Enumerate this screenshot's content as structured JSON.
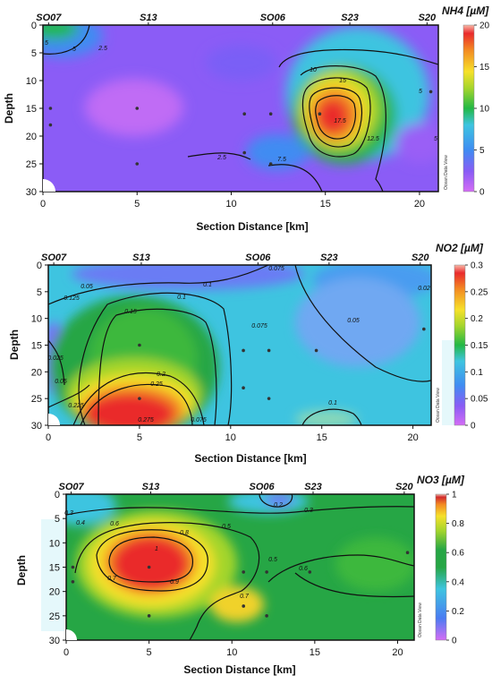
{
  "chart_data": [
    {
      "type": "heatmap",
      "title": "NH4 [µM]",
      "xlabel": "Section Distance [km]",
      "ylabel": "Depth",
      "xlim": [
        0,
        21
      ],
      "ylim": [
        30,
        0
      ],
      "x_ticks": [
        "0",
        "5",
        "10",
        "15",
        "20"
      ],
      "y_ticks": [
        "0",
        "5",
        "10",
        "15",
        "20",
        "25",
        "30"
      ],
      "stations": [
        {
          "name": "SO07",
          "x": 0.3
        },
        {
          "name": "S13",
          "x": 5.6
        },
        {
          "name": "SO06",
          "x": 12.2
        },
        {
          "name": "S23",
          "x": 16.3
        },
        {
          "name": "S20",
          "x": 20.4
        }
      ],
      "colorbar": {
        "min": 0,
        "max": 20,
        "ticks": [
          "0",
          "5",
          "10",
          "15",
          "20"
        ]
      },
      "contour_labels": [
        "5",
        "5",
        "2.5",
        "10",
        "15",
        "17.5",
        "12.5",
        "5",
        "2.5",
        "7.5",
        "5"
      ],
      "samples": [
        {
          "x": 0.4,
          "y": 15
        },
        {
          "x": 0.4,
          "y": 18
        },
        {
          "x": 5.0,
          "y": 15
        },
        {
          "x": 5.0,
          "y": 25
        },
        {
          "x": 10.7,
          "y": 16
        },
        {
          "x": 10.7,
          "y": 23
        },
        {
          "x": 12.1,
          "y": 16
        },
        {
          "x": 12.1,
          "y": 25
        },
        {
          "x": 14.7,
          "y": 16
        },
        {
          "x": 20.6,
          "y": 12
        }
      ],
      "watermark": "Ocean Data View"
    },
    {
      "type": "heatmap",
      "title": "NO2 [µM]",
      "xlabel": "Section Distance [km]",
      "ylabel": "Depth",
      "xlim": [
        0,
        21
      ],
      "ylim": [
        30,
        0
      ],
      "x_ticks": [
        "0",
        "5",
        "10",
        "15",
        "20"
      ],
      "y_ticks": [
        "0",
        "5",
        "10",
        "15",
        "20",
        "25",
        "30"
      ],
      "stations": [
        {
          "name": "SO07",
          "x": 0.3
        },
        {
          "name": "S13",
          "x": 5.1
        },
        {
          "name": "SO06",
          "x": 11.5
        },
        {
          "name": "S23",
          "x": 15.4
        },
        {
          "name": "S20",
          "x": 20.4
        }
      ],
      "colorbar": {
        "min": 0,
        "max": 0.3,
        "ticks": [
          "0",
          "0.05",
          "0.1",
          "0.15",
          "0.2",
          "0.25",
          "0.3"
        ]
      },
      "contour_labels": [
        "0.05",
        "0.1",
        "0.1",
        "0.125",
        "0.15",
        "0.2",
        "0.25",
        "0.225",
        "0.275",
        "0.075",
        "0.075",
        "0.05",
        "0.025",
        "0.05",
        "0.1",
        "0.02",
        "0.075"
      ],
      "samples": [
        {
          "x": 5.0,
          "y": 15
        },
        {
          "x": 5.0,
          "y": 25
        },
        {
          "x": 10.7,
          "y": 16
        },
        {
          "x": 10.7,
          "y": 23
        },
        {
          "x": 12.1,
          "y": 16
        },
        {
          "x": 12.1,
          "y": 25
        },
        {
          "x": 14.7,
          "y": 16
        },
        {
          "x": 20.6,
          "y": 12
        }
      ],
      "watermark": "Ocean Data View"
    },
    {
      "type": "heatmap",
      "title": "NO3 [µM]",
      "xlabel": "Section Distance [km]",
      "ylabel": "Depth",
      "xlim": [
        0,
        21
      ],
      "ylim": [
        30,
        0
      ],
      "x_ticks": [
        "0",
        "5",
        "10",
        "15",
        "20"
      ],
      "y_ticks": [
        "0",
        "5",
        "10",
        "15",
        "20",
        "25",
        "30"
      ],
      "stations": [
        {
          "name": "SO07",
          "x": 0.3
        },
        {
          "name": "S13",
          "x": 5.1
        },
        {
          "name": "SO06",
          "x": 11.8
        },
        {
          "name": "S23",
          "x": 14.9
        },
        {
          "name": "S20",
          "x": 20.4
        }
      ],
      "colorbar": {
        "min": 0,
        "max": 1,
        "ticks": [
          "0",
          "0.2",
          "0.4",
          "0.6",
          "0.8",
          "1"
        ]
      },
      "contour_labels": [
        "0.3",
        "0.4",
        "0.6",
        "0.8",
        "1",
        "0.9",
        "0.7",
        "0.5",
        "0.5",
        "0.6",
        "0.2",
        "0.3",
        "0.7"
      ],
      "samples": [
        {
          "x": 0.4,
          "y": 15
        },
        {
          "x": 0.4,
          "y": 18
        },
        {
          "x": 5.0,
          "y": 15
        },
        {
          "x": 5.0,
          "y": 25
        },
        {
          "x": 10.7,
          "y": 16
        },
        {
          "x": 10.7,
          "y": 23
        },
        {
          "x": 12.1,
          "y": 16
        },
        {
          "x": 12.1,
          "y": 25
        },
        {
          "x": 14.7,
          "y": 16
        },
        {
          "x": 20.6,
          "y": 12
        }
      ],
      "watermark": "Ocean Data View"
    }
  ]
}
